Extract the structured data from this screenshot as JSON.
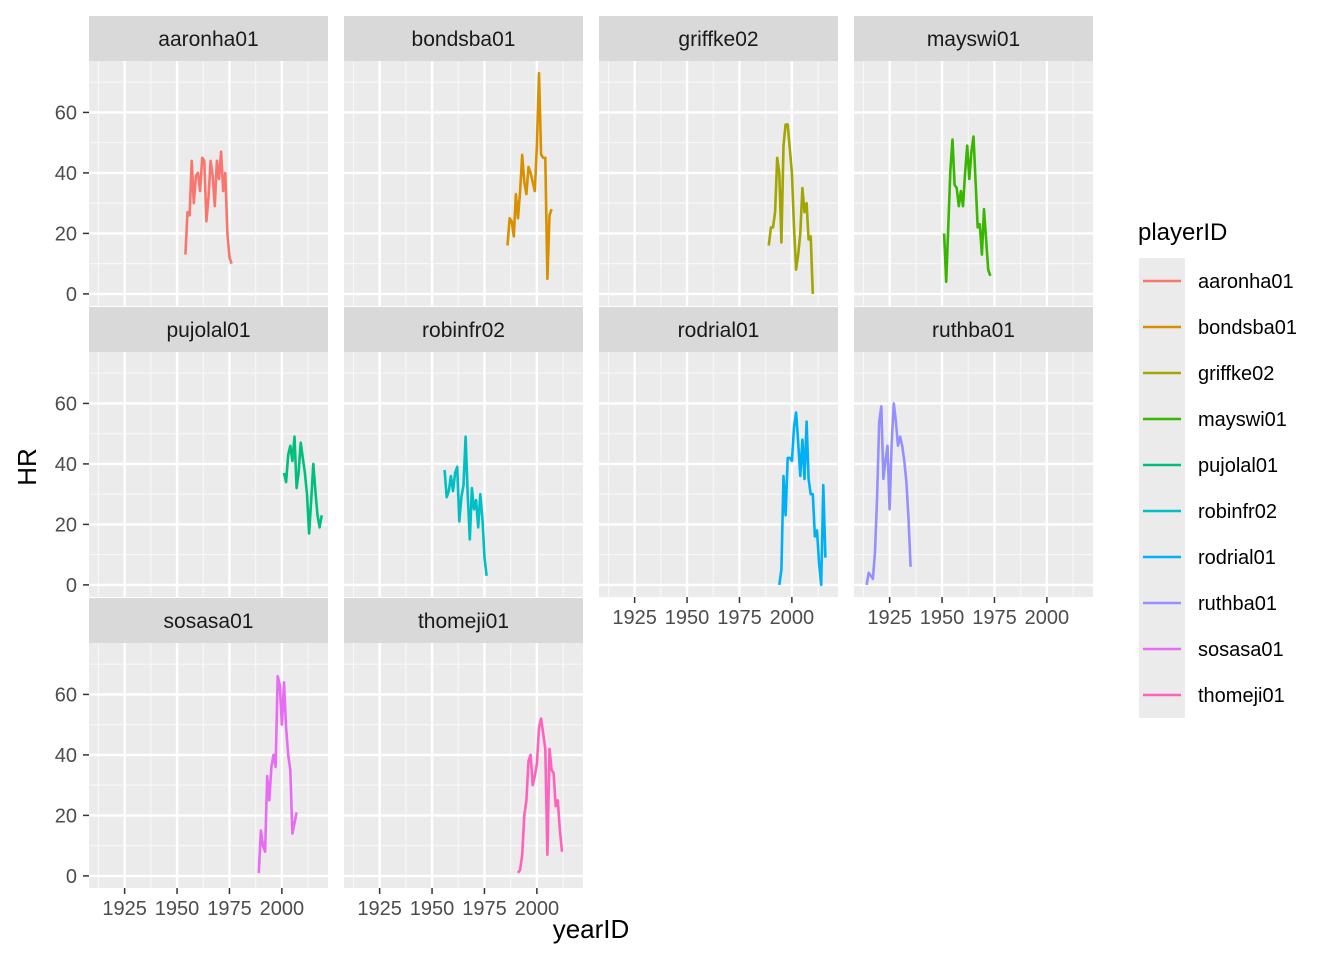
{
  "chart_data": {
    "type": "line",
    "facet_by": "playerID",
    "xlabel": "yearID",
    "ylabel": "HR",
    "xlim": [
      1908,
      2022
    ],
    "ylim": [
      -4,
      77
    ],
    "x_ticks": [
      1925,
      1950,
      1975,
      2000
    ],
    "y_ticks": [
      0,
      20,
      40,
      60
    ],
    "grid": true,
    "legend_title": "playerID",
    "legend_position": "right",
    "panels": [
      {
        "name": "aaronha01",
        "color": "#F8766D",
        "x": [
          1954,
          1955,
          1956,
          1957,
          1958,
          1959,
          1960,
          1961,
          1962,
          1963,
          1964,
          1965,
          1966,
          1967,
          1968,
          1969,
          1970,
          1971,
          1972,
          1973,
          1974,
          1975,
          1976
        ],
        "y": [
          13,
          27,
          26,
          44,
          30,
          39,
          40,
          34,
          45,
          44,
          24,
          32,
          44,
          39,
          29,
          44,
          38,
          47,
          34,
          40,
          20,
          12,
          10
        ]
      },
      {
        "name": "bondsba01",
        "color": "#D89000",
        "x": [
          1986,
          1987,
          1988,
          1989,
          1990,
          1991,
          1992,
          1993,
          1994,
          1995,
          1996,
          1997,
          1998,
          1999,
          2000,
          2001,
          2002,
          2003,
          2004,
          2005,
          2006,
          2007
        ],
        "y": [
          16,
          25,
          24,
          19,
          33,
          25,
          34,
          46,
          37,
          33,
          42,
          40,
          37,
          34,
          49,
          73,
          46,
          45,
          45,
          5,
          26,
          28
        ]
      },
      {
        "name": "griffke02",
        "color": "#A3A500",
        "x": [
          1989,
          1990,
          1991,
          1992,
          1993,
          1994,
          1995,
          1996,
          1997,
          1998,
          1999,
          2000,
          2001,
          2002,
          2003,
          2004,
          2005,
          2006,
          2007,
          2008,
          2009,
          2010
        ],
        "y": [
          16,
          22,
          22,
          27,
          45,
          40,
          17,
          49,
          56,
          56,
          48,
          40,
          22,
          8,
          13,
          20,
          35,
          27,
          30,
          18,
          19,
          0
        ]
      },
      {
        "name": "mayswi01",
        "color": "#39B600",
        "x": [
          1951,
          1952,
          1954,
          1955,
          1956,
          1957,
          1958,
          1959,
          1960,
          1961,
          1962,
          1963,
          1964,
          1965,
          1966,
          1967,
          1968,
          1969,
          1970,
          1971,
          1972,
          1973
        ],
        "y": [
          20,
          4,
          41,
          51,
          36,
          35,
          29,
          34,
          29,
          40,
          49,
          38,
          47,
          52,
          37,
          22,
          23,
          13,
          28,
          18,
          8,
          6
        ]
      },
      {
        "name": "pujolal01",
        "color": "#00BF7D",
        "x": [
          2001,
          2002,
          2003,
          2004,
          2005,
          2006,
          2007,
          2008,
          2009,
          2010,
          2011,
          2012,
          2013,
          2014,
          2015,
          2016,
          2017,
          2018,
          2019
        ],
        "y": [
          37,
          34,
          43,
          46,
          41,
          49,
          32,
          37,
          47,
          42,
          37,
          30,
          17,
          28,
          40,
          31,
          23,
          19,
          23
        ]
      },
      {
        "name": "robinfr02",
        "color": "#00BFC4",
        "x": [
          1956,
          1957,
          1958,
          1959,
          1960,
          1961,
          1962,
          1963,
          1964,
          1965,
          1966,
          1967,
          1968,
          1969,
          1970,
          1971,
          1972,
          1973,
          1974,
          1975,
          1976
        ],
        "y": [
          38,
          29,
          31,
          36,
          31,
          37,
          39,
          21,
          29,
          33,
          49,
          30,
          15,
          32,
          25,
          28,
          19,
          30,
          22,
          9,
          3
        ]
      },
      {
        "name": "rodrial01",
        "color": "#00B0F6",
        "x": [
          1994,
          1995,
          1996,
          1997,
          1998,
          1999,
          2000,
          2001,
          2002,
          2003,
          2004,
          2005,
          2006,
          2007,
          2008,
          2009,
          2010,
          2011,
          2012,
          2013,
          2014,
          2015,
          2016
        ],
        "y": [
          0,
          5,
          36,
          23,
          42,
          42,
          41,
          52,
          57,
          47,
          36,
          48,
          35,
          54,
          35,
          30,
          30,
          16,
          18,
          7,
          0,
          33,
          9
        ]
      },
      {
        "name": "ruthba01",
        "color": "#9590FF",
        "x": [
          1914,
          1915,
          1916,
          1917,
          1918,
          1919,
          1920,
          1921,
          1922,
          1923,
          1924,
          1925,
          1926,
          1927,
          1928,
          1929,
          1930,
          1931,
          1932,
          1933,
          1934,
          1935
        ],
        "y": [
          0,
          4,
          3,
          2,
          11,
          29,
          54,
          59,
          35,
          41,
          46,
          25,
          47,
          60,
          54,
          46,
          49,
          46,
          41,
          34,
          22,
          6
        ]
      },
      {
        "name": "sosasa01",
        "color": "#E76BF3",
        "x": [
          1989,
          1990,
          1991,
          1992,
          1993,
          1994,
          1995,
          1996,
          1997,
          1998,
          1999,
          2000,
          2001,
          2002,
          2003,
          2004,
          2005,
          2007
        ],
        "y": [
          1,
          15,
          10,
          8,
          33,
          25,
          36,
          40,
          36,
          66,
          63,
          50,
          64,
          49,
          40,
          35,
          14,
          21
        ]
      },
      {
        "name": "thomeji01",
        "color": "#FF62BC",
        "x": [
          1991,
          1992,
          1993,
          1994,
          1995,
          1996,
          1997,
          1998,
          1999,
          2000,
          2001,
          2002,
          2003,
          2004,
          2005,
          2006,
          2007,
          2008,
          2009,
          2010,
          2011,
          2012
        ],
        "y": [
          1,
          2,
          7,
          20,
          25,
          38,
          40,
          30,
          33,
          37,
          49,
          52,
          47,
          42,
          7,
          42,
          35,
          34,
          23,
          25,
          15,
          8
        ]
      }
    ]
  }
}
